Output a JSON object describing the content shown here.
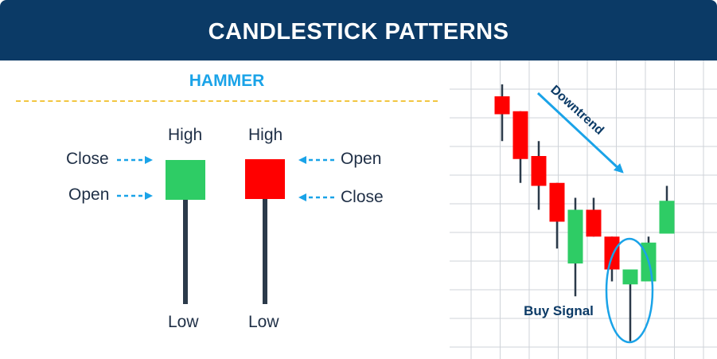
{
  "header": {
    "title": "CANDLESTICK PATTERNS"
  },
  "pattern": {
    "name": "HAMMER"
  },
  "bullish": {
    "high": "High",
    "low": "Low",
    "close": "Close",
    "open": "Open"
  },
  "bearish": {
    "high": "High",
    "low": "Low",
    "open": "Open",
    "close": "Close"
  },
  "chart": {
    "trend_label": "Downtrend",
    "signal_label": "Buy Signal"
  },
  "colors": {
    "banner": "#0b3a66",
    "accent": "#1aa3e8",
    "divider": "#f2c641",
    "bull": "#2ecc65",
    "bear": "#ff0000",
    "text": "#1f2f46"
  },
  "chart_data": {
    "type": "candlestick",
    "candles": [
      {
        "direction": "down",
        "open": 8.8,
        "close": 8.2,
        "high": 9.2,
        "low": 7.3
      },
      {
        "direction": "down",
        "open": 8.3,
        "close": 6.7,
        "high": 8.3,
        "low": 5.9
      },
      {
        "direction": "down",
        "open": 6.8,
        "close": 5.8,
        "high": 7.3,
        "low": 5.0
      },
      {
        "direction": "down",
        "open": 5.9,
        "close": 4.6,
        "high": 5.9,
        "low": 3.7
      },
      {
        "direction": "up",
        "open": 3.2,
        "close": 5.0,
        "high": 5.4,
        "low": 2.1
      },
      {
        "direction": "down",
        "open": 5.0,
        "close": 4.1,
        "high": 5.4,
        "low": 4.1
      },
      {
        "direction": "down",
        "open": 4.1,
        "close": 3.0,
        "high": 4.1,
        "low": 2.6
      },
      {
        "direction": "up",
        "open": 2.5,
        "close": 3.0,
        "high": 3.0,
        "low": 0.6
      },
      {
        "direction": "up",
        "open": 2.6,
        "close": 3.9,
        "high": 4.1,
        "low": 2.6
      },
      {
        "direction": "up",
        "open": 4.2,
        "close": 5.3,
        "high": 5.8,
        "low": 4.2
      }
    ],
    "ylim": [
      0,
      10
    ],
    "grid": true,
    "annotations": [
      "Downtrend",
      "Buy Signal"
    ]
  }
}
